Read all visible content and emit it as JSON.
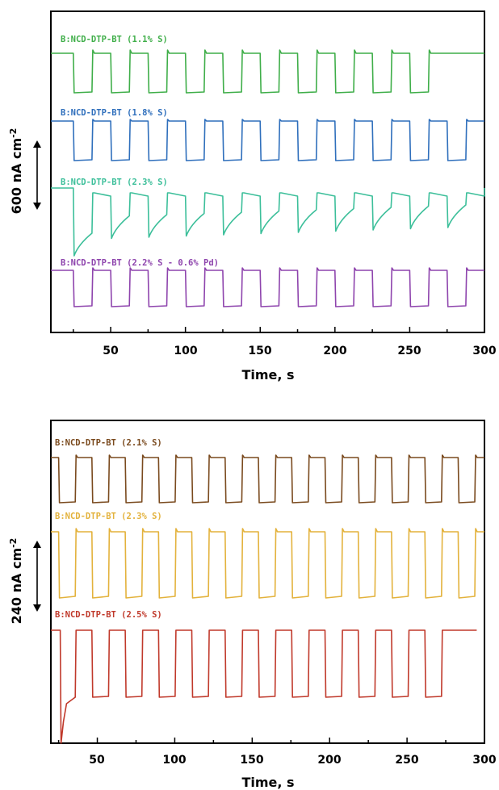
{
  "chart_data": [
    {
      "type": "line",
      "xlabel": "Time, s",
      "ylabel": "600 nA cm",
      "ylabel_sup": "-2",
      "scale_bar": "600 nA cm-2",
      "xlim": [
        10,
        300
      ],
      "xticks": [
        50,
        100,
        150,
        200,
        250,
        300
      ],
      "grid": false,
      "legend": "inline labels above each trace",
      "series": [
        {
          "name": "B:NCD-DTP-BT (1.1% S)",
          "color": "#3fae49",
          "start": 25,
          "period": 25,
          "on_time": 12.5,
          "count": 10,
          "stop": 278
        },
        {
          "name": "B:NCD-DTP-BT (1.8% S)",
          "color": "#2f6fbc",
          "start": 25,
          "period": 25,
          "on_time": 12.5,
          "count": 11,
          "stop": 300
        },
        {
          "name": "B:NCD-DTP-BT (2.3% S)",
          "color": "#3cbf9a",
          "start": 25,
          "period": 25,
          "on_time": 12.5,
          "count": 11,
          "stop": 300
        },
        {
          "name": "B:NCD-DTP-BT (2.2% S - 0.6% Pd)",
          "color": "#8e44ad",
          "start": 25,
          "period": 25,
          "on_time": 12.5,
          "count": 11,
          "stop": 300
        }
      ]
    },
    {
      "type": "line",
      "xlabel": "Time, s",
      "ylabel": "240 nA cm",
      "ylabel_sup": "-2",
      "scale_bar": "240 nA cm-2",
      "xlim": [
        20,
        300
      ],
      "xticks": [
        50,
        100,
        150,
        200,
        250,
        300
      ],
      "grid": false,
      "legend": "inline labels above each trace",
      "series": [
        {
          "name": "B:NCD-DTP-BT (2.1% S)",
          "color": "#7a4a1e",
          "start": 25,
          "period": 21.5,
          "on_time": 10.75,
          "count": 13,
          "stop": 300
        },
        {
          "name": "B:NCD-DTP-BT (2.3% S)",
          "color": "#e3b23c",
          "start": 25,
          "period": 21.5,
          "on_time": 10.75,
          "count": 13,
          "stop": 300
        },
        {
          "name": "B:NCD-DTP-BT (2.5% S)",
          "color": "#c0392b",
          "start": 25,
          "period": 21.5,
          "on_time": 10.75,
          "count": 12,
          "stop": 295
        }
      ]
    }
  ]
}
